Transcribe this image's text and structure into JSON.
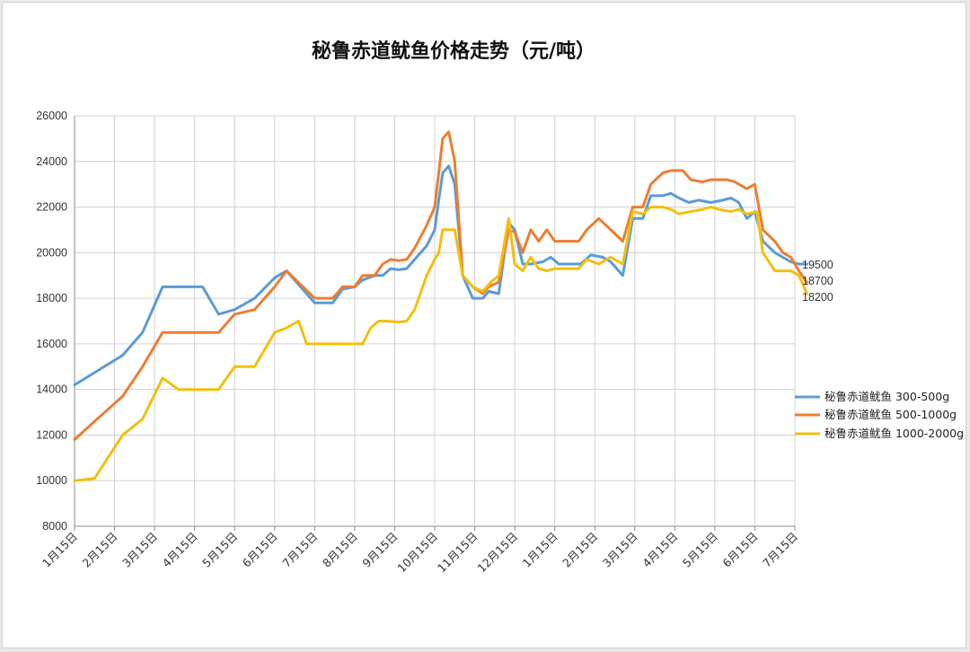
{
  "chart_data": {
    "type": "line",
    "title": "秘鲁赤道鱿鱼价格走势（元/吨）",
    "xlabel": "",
    "ylabel": "",
    "ylim": [
      8000,
      26000
    ],
    "yticks": [
      8000,
      10000,
      12000,
      14000,
      16000,
      18000,
      20000,
      22000,
      24000,
      26000
    ],
    "categories": [
      "1月15日",
      "2月15日",
      "3月15日",
      "4月15日",
      "5月15日",
      "6月15日",
      "7月15日",
      "8月15日",
      "9月15日",
      "10月15日",
      "11月15日",
      "12月15日",
      "1月15日",
      "2月15日",
      "3月15日",
      "4月15日",
      "5月15日",
      "6月15日",
      "7月15日"
    ],
    "grid": true,
    "legend_position": "right",
    "series": [
      {
        "name": "秘鲁赤道鱿鱼 300-500g",
        "color": "#5B9BD5",
        "end_label": "19500",
        "points": [
          [
            0,
            14200
          ],
          [
            1.2,
            15500
          ],
          [
            1.7,
            16500
          ],
          [
            2.2,
            18500
          ],
          [
            3.2,
            18500
          ],
          [
            3.6,
            17300
          ],
          [
            4,
            17500
          ],
          [
            4.5,
            18000
          ],
          [
            5,
            18900
          ],
          [
            5.3,
            19200
          ],
          [
            6,
            17800
          ],
          [
            6.45,
            17800
          ],
          [
            6.7,
            18400
          ],
          [
            7,
            18500
          ],
          [
            7.2,
            18800
          ],
          [
            7.5,
            19000
          ],
          [
            7.7,
            19000
          ],
          [
            7.9,
            19300
          ],
          [
            8.1,
            19250
          ],
          [
            8.3,
            19300
          ],
          [
            8.5,
            19700
          ],
          [
            8.8,
            20300
          ],
          [
            9,
            21000
          ],
          [
            9.1,
            22300
          ],
          [
            9.2,
            23500
          ],
          [
            9.35,
            23800
          ],
          [
            9.5,
            23000
          ],
          [
            9.7,
            19000
          ],
          [
            9.95,
            18000
          ],
          [
            10.2,
            18000
          ],
          [
            10.35,
            18300
          ],
          [
            10.6,
            18200
          ],
          [
            10.85,
            21300
          ],
          [
            11,
            21000
          ],
          [
            11.2,
            19500
          ],
          [
            11.4,
            19500
          ],
          [
            11.7,
            19600
          ],
          [
            11.9,
            19800
          ],
          [
            12.1,
            19500
          ],
          [
            12.4,
            19500
          ],
          [
            12.65,
            19500
          ],
          [
            12.9,
            19900
          ],
          [
            13.2,
            19800
          ],
          [
            13.4,
            19600
          ],
          [
            13.7,
            19000
          ],
          [
            13.95,
            21500
          ],
          [
            14.2,
            21500
          ],
          [
            14.4,
            22500
          ],
          [
            14.7,
            22500
          ],
          [
            14.9,
            22600
          ],
          [
            15.1,
            22400
          ],
          [
            15.35,
            22200
          ],
          [
            15.6,
            22300
          ],
          [
            15.9,
            22200
          ],
          [
            16.2,
            22300
          ],
          [
            16.4,
            22400
          ],
          [
            16.6,
            22200
          ],
          [
            16.8,
            21500
          ],
          [
            17,
            21800
          ],
          [
            17.2,
            20500
          ],
          [
            17.5,
            20000
          ],
          [
            17.7,
            19800
          ],
          [
            17.9,
            19600
          ],
          [
            18.1,
            19500
          ],
          [
            18.3,
            19500
          ]
        ]
      },
      {
        "name": "秘鲁赤道鱿鱼 500-1000g",
        "color": "#ED7D31",
        "end_label": "18700",
        "points": [
          [
            0,
            11800
          ],
          [
            0.5,
            12600
          ],
          [
            1.2,
            13700
          ],
          [
            1.7,
            15000
          ],
          [
            2.2,
            16500
          ],
          [
            3.2,
            16500
          ],
          [
            3.6,
            16500
          ],
          [
            4,
            17300
          ],
          [
            4.5,
            17500
          ],
          [
            5,
            18500
          ],
          [
            5.3,
            19200
          ],
          [
            6,
            18000
          ],
          [
            6.45,
            18000
          ],
          [
            6.7,
            18500
          ],
          [
            7,
            18500
          ],
          [
            7.2,
            19000
          ],
          [
            7.5,
            19000
          ],
          [
            7.7,
            19500
          ],
          [
            7.9,
            19700
          ],
          [
            8.1,
            19650
          ],
          [
            8.3,
            19700
          ],
          [
            8.5,
            20200
          ],
          [
            8.8,
            21200
          ],
          [
            9,
            22000
          ],
          [
            9.1,
            23500
          ],
          [
            9.2,
            25000
          ],
          [
            9.35,
            25300
          ],
          [
            9.5,
            24000
          ],
          [
            9.7,
            19000
          ],
          [
            9.95,
            18500
          ],
          [
            10.2,
            18200
          ],
          [
            10.35,
            18500
          ],
          [
            10.6,
            18700
          ],
          [
            10.85,
            21000
          ],
          [
            11,
            20900
          ],
          [
            11.2,
            20000
          ],
          [
            11.4,
            21000
          ],
          [
            11.6,
            20500
          ],
          [
            11.8,
            21000
          ],
          [
            12,
            20500
          ],
          [
            12.2,
            20500
          ],
          [
            12.6,
            20500
          ],
          [
            12.8,
            21000
          ],
          [
            13.1,
            21500
          ],
          [
            13.4,
            21000
          ],
          [
            13.7,
            20500
          ],
          [
            13.95,
            22000
          ],
          [
            14.2,
            22000
          ],
          [
            14.4,
            23000
          ],
          [
            14.7,
            23500
          ],
          [
            14.9,
            23600
          ],
          [
            15.2,
            23600
          ],
          [
            15.4,
            23200
          ],
          [
            15.7,
            23100
          ],
          [
            15.9,
            23200
          ],
          [
            16.3,
            23200
          ],
          [
            16.5,
            23100
          ],
          [
            16.8,
            22800
          ],
          [
            17,
            23000
          ],
          [
            17.2,
            21000
          ],
          [
            17.5,
            20500
          ],
          [
            17.7,
            20000
          ],
          [
            17.9,
            19800
          ],
          [
            18.1,
            19200
          ],
          [
            18.3,
            18700
          ]
        ]
      },
      {
        "name": "秘鲁赤道鱿鱼 1000-2000g",
        "color": "#F2C00D",
        "end_label": "18200",
        "points": [
          [
            0,
            10000
          ],
          [
            0.5,
            10100
          ],
          [
            1.2,
            12000
          ],
          [
            1.7,
            12700
          ],
          [
            2.2,
            14500
          ],
          [
            2.6,
            14000
          ],
          [
            3.2,
            14000
          ],
          [
            3.6,
            14000
          ],
          [
            4,
            15000
          ],
          [
            4.5,
            15000
          ],
          [
            5,
            16500
          ],
          [
            5.3,
            16700
          ],
          [
            5.6,
            17000
          ],
          [
            5.8,
            16000
          ],
          [
            6.3,
            16000
          ],
          [
            7,
            16000
          ],
          [
            7.2,
            16000
          ],
          [
            7.4,
            16700
          ],
          [
            7.6,
            17000
          ],
          [
            7.8,
            17000
          ],
          [
            8.1,
            16950
          ],
          [
            8.3,
            17000
          ],
          [
            8.5,
            17500
          ],
          [
            8.8,
            19000
          ],
          [
            9,
            19700
          ],
          [
            9.1,
            20000
          ],
          [
            9.2,
            21000
          ],
          [
            9.5,
            21000
          ],
          [
            9.7,
            19000
          ],
          [
            9.95,
            18500
          ],
          [
            10.2,
            18300
          ],
          [
            10.4,
            18700
          ],
          [
            10.6,
            19000
          ],
          [
            10.85,
            21500
          ],
          [
            11,
            19500
          ],
          [
            11.2,
            19200
          ],
          [
            11.4,
            19800
          ],
          [
            11.6,
            19300
          ],
          [
            11.8,
            19200
          ],
          [
            12,
            19300
          ],
          [
            12.3,
            19300
          ],
          [
            12.6,
            19300
          ],
          [
            12.8,
            19700
          ],
          [
            13.1,
            19500
          ],
          [
            13.4,
            19800
          ],
          [
            13.7,
            19500
          ],
          [
            13.95,
            21800
          ],
          [
            14.2,
            21700
          ],
          [
            14.4,
            22000
          ],
          [
            14.7,
            22000
          ],
          [
            14.9,
            21900
          ],
          [
            15.1,
            21700
          ],
          [
            15.4,
            21800
          ],
          [
            15.7,
            21900
          ],
          [
            15.9,
            22000
          ],
          [
            16.1,
            21900
          ],
          [
            16.4,
            21800
          ],
          [
            16.6,
            21900
          ],
          [
            16.8,
            21700
          ],
          [
            17.05,
            21800
          ],
          [
            17.2,
            20000
          ],
          [
            17.5,
            19200
          ],
          [
            17.7,
            19200
          ],
          [
            17.9,
            19200
          ],
          [
            18.1,
            19000
          ],
          [
            18.3,
            18200
          ]
        ]
      }
    ]
  }
}
